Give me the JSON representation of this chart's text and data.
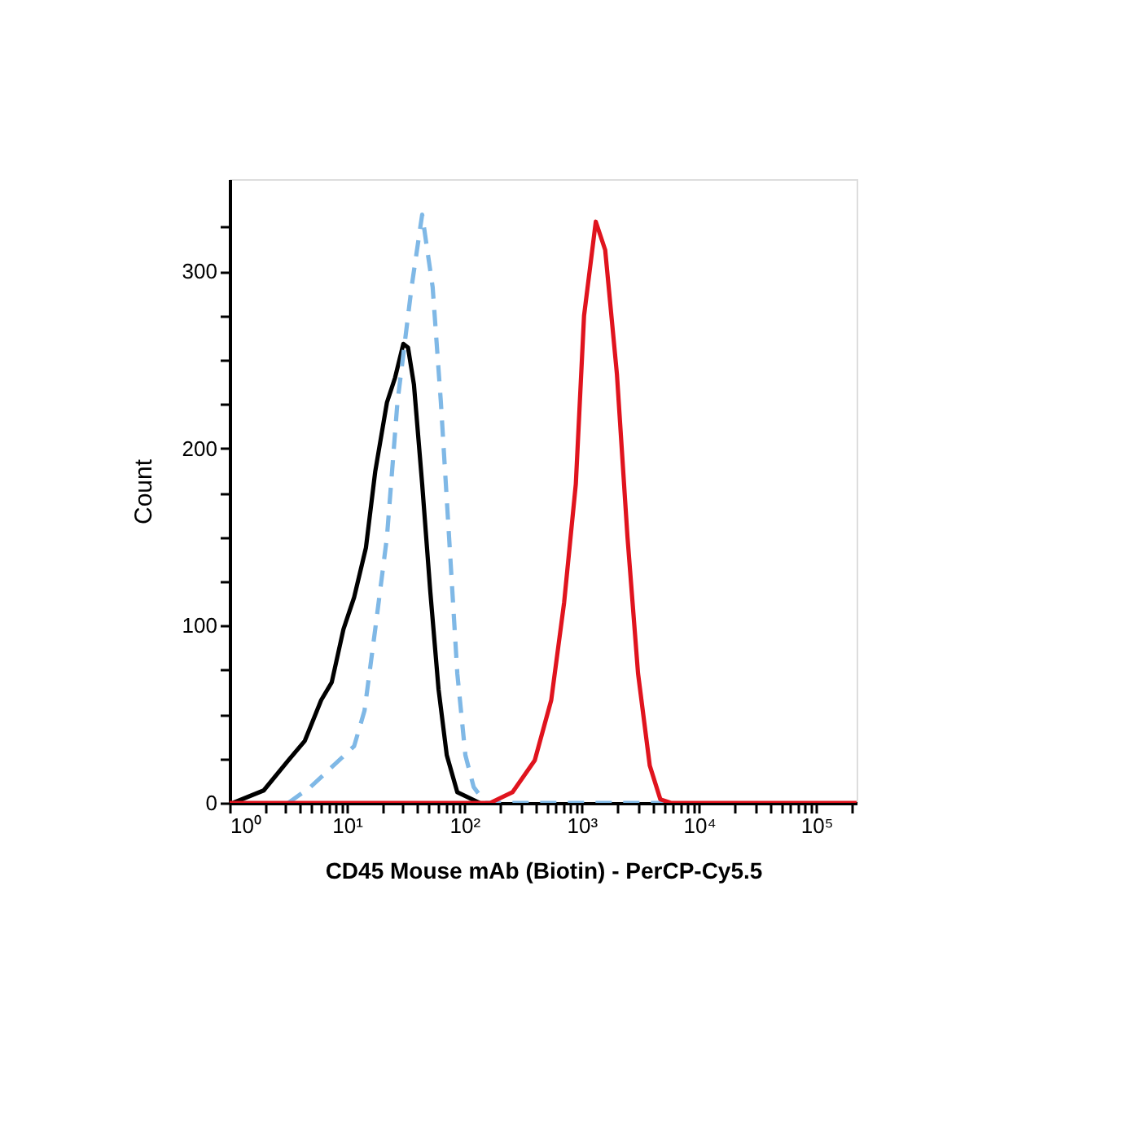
{
  "chart_data": {
    "type": "line",
    "xlabel": "CD45 Mouse mAb (Biotin) - PerCP-Cy5.5",
    "ylabel": "Count",
    "log": "x",
    "xlim": [
      1,
      220000
    ],
    "ylim": [
      0,
      352
    ],
    "grid": false,
    "marker": "none",
    "xticks": [
      {
        "value": 1,
        "label": "10⁰"
      },
      {
        "value": 2,
        "label": null
      },
      {
        "value": 3,
        "label": null
      },
      {
        "value": 4,
        "label": null
      },
      {
        "value": 5,
        "label": null
      },
      {
        "value": 6,
        "label": null
      },
      {
        "value": 7,
        "label": null
      },
      {
        "value": 8,
        "label": null
      },
      {
        "value": 9,
        "label": null
      },
      {
        "value": 10,
        "label": "10¹"
      },
      {
        "value": 20,
        "label": null
      },
      {
        "value": 30,
        "label": null
      },
      {
        "value": 40,
        "label": null
      },
      {
        "value": 50,
        "label": null
      },
      {
        "value": 60,
        "label": null
      },
      {
        "value": 70,
        "label": null
      },
      {
        "value": 80,
        "label": null
      },
      {
        "value": 90,
        "label": null
      },
      {
        "value": 100,
        "label": "10²"
      },
      {
        "value": 200,
        "label": null
      },
      {
        "value": 300,
        "label": null
      },
      {
        "value": 400,
        "label": null
      },
      {
        "value": 500,
        "label": null
      },
      {
        "value": 600,
        "label": null
      },
      {
        "value": 700,
        "label": null
      },
      {
        "value": 800,
        "label": null
      },
      {
        "value": 900,
        "label": null
      },
      {
        "value": 1000,
        "label": "10³"
      },
      {
        "value": 2000,
        "label": null
      },
      {
        "value": 3000,
        "label": null
      },
      {
        "value": 4000,
        "label": null
      },
      {
        "value": 5000,
        "label": null
      },
      {
        "value": 6000,
        "label": null
      },
      {
        "value": 7000,
        "label": null
      },
      {
        "value": 8000,
        "label": null
      },
      {
        "value": 9000,
        "label": null
      },
      {
        "value": 10000,
        "label": "10⁴"
      },
      {
        "value": 20000,
        "label": null
      },
      {
        "value": 30000,
        "label": null
      },
      {
        "value": 40000,
        "label": null
      },
      {
        "value": 50000,
        "label": null
      },
      {
        "value": 60000,
        "label": null
      },
      {
        "value": 70000,
        "label": null
      },
      {
        "value": 80000,
        "label": null
      },
      {
        "value": 90000,
        "label": null
      },
      {
        "value": 100000,
        "label": "10⁵"
      },
      {
        "value": 200000,
        "label": null
      }
    ],
    "yticks": [
      0,
      {
        "value": 25,
        "label": null
      },
      {
        "value": 50,
        "label": null
      },
      {
        "value": 75,
        "label": null
      },
      100,
      {
        "value": 125,
        "label": null
      },
      {
        "value": 150,
        "label": null
      },
      {
        "value": 175,
        "label": null
      },
      200,
      {
        "value": 225,
        "label": null
      },
      {
        "value": 250,
        "label": null
      },
      {
        "value": 275,
        "label": null
      },
      300,
      {
        "value": 325,
        "label": null
      }
    ],
    "series": [
      {
        "color": "#000000",
        "line_style": "solid",
        "x": [
          1.07,
          1.95,
          3.16,
          4.37,
          6.03,
          7.41,
          9.33,
          11.5,
          14.5,
          17.4,
          21.9,
          25.7,
          30.2,
          33.1,
          37.2,
          43.7,
          51.3,
          60.3,
          70.8,
          87.1,
          135
        ],
        "values": [
          0,
          7,
          24,
          35,
          58,
          68,
          98,
          116,
          144,
          187,
          226,
          240,
          259,
          257,
          236,
          180,
          119,
          64,
          27,
          6,
          0
        ]
      },
      {
        "color": "#7fb8e6",
        "line_style": "dashed",
        "x": [
          3.16,
          4.9,
          11.5,
          14.1,
          17.4,
          21.9,
          26.9,
          35.5,
          43.7,
          53.7,
          63.1,
          74.1,
          87.1,
          102,
          120,
          151,
          5000
        ],
        "values": [
          0,
          9,
          32,
          52,
          98,
          150,
          226,
          291,
          332,
          291,
          226,
          150,
          73,
          27,
          9,
          0,
          0
        ]
      },
      {
        "color": "#e0141e",
        "line_style": "solid",
        "x": [
          1,
          166,
          257,
          398,
          550,
          708,
          891,
          1047,
          1318,
          1585,
          1995,
          2455,
          3020,
          3802,
          4677,
          5754,
          220000
        ],
        "values": [
          0,
          0,
          6,
          24,
          58,
          113,
          180,
          275,
          328,
          312,
          242,
          150,
          73,
          21,
          2,
          0,
          0
        ]
      }
    ]
  }
}
